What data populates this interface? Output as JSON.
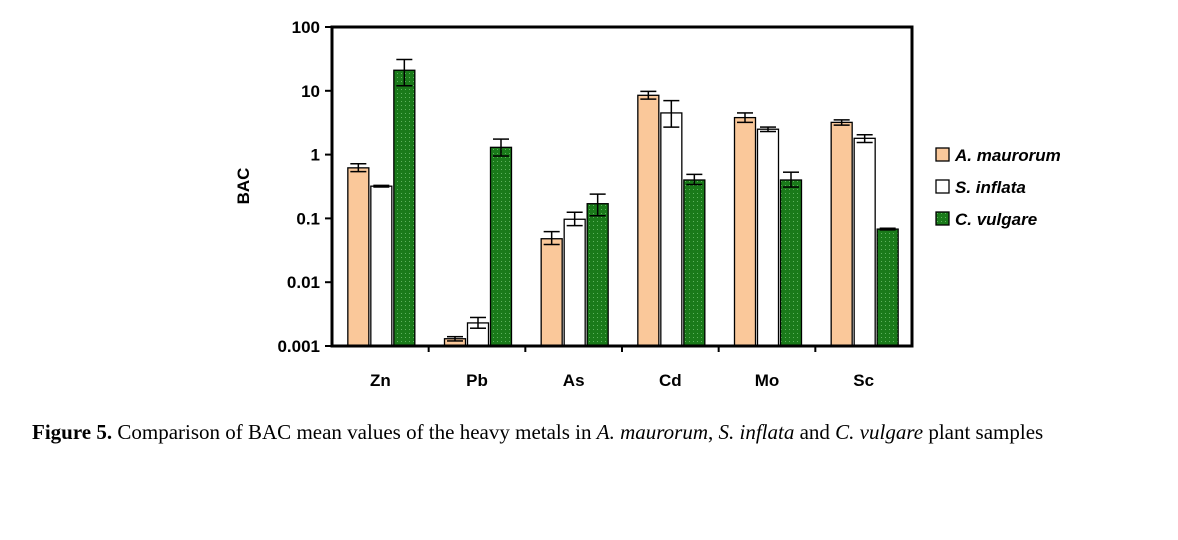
{
  "chart_data": {
    "type": "bar",
    "ylabel": "BAC",
    "xlabel": "",
    "yscale": "log",
    "ylim": [
      0.001,
      100
    ],
    "yticks": [
      "0.001",
      "0.01",
      "0.1",
      "1",
      "10",
      "100"
    ],
    "categories": [
      "Zn",
      "Pb",
      "As",
      "Cd",
      "Mo",
      "Sc"
    ],
    "series": [
      {
        "name": "A. maurorum",
        "color": "#FAC89A",
        "values": [
          0.62,
          0.0013,
          0.048,
          8.5,
          3.8,
          3.2
        ],
        "err_low": [
          0.54,
          0.0012,
          0.039,
          7.4,
          3.2,
          2.9
        ],
        "err_high": [
          0.72,
          0.0014,
          0.062,
          9.8,
          4.5,
          3.5
        ]
      },
      {
        "name": "S. inflata",
        "color": "#FFFFFF",
        "values": [
          0.32,
          0.0023,
          0.097,
          4.5,
          2.5,
          1.8
        ],
        "err_low": [
          0.31,
          0.0019,
          0.077,
          2.7,
          2.3,
          1.55
        ],
        "err_high": [
          0.33,
          0.0028,
          0.125,
          7.0,
          2.7,
          2.05
        ]
      },
      {
        "name": "C. vulgare",
        "color": "#1A7A1A",
        "values": [
          21,
          1.3,
          0.17,
          0.4,
          0.4,
          0.068
        ],
        "err_low": [
          12,
          0.95,
          0.11,
          0.34,
          0.31,
          0.066
        ],
        "err_high": [
          31,
          1.75,
          0.24,
          0.49,
          0.53,
          0.07
        ]
      }
    ],
    "grid": false,
    "legend": "right"
  },
  "caption": {
    "label": "Figure 5.",
    "t1": " Comparison of BAC mean values of the heavy metals in ",
    "s1": "A. maurorum",
    "t2": ", ",
    "s2": "S. inflata",
    "t3": " and ",
    "s3": "C. vulgare",
    "t4": " plant samples"
  }
}
